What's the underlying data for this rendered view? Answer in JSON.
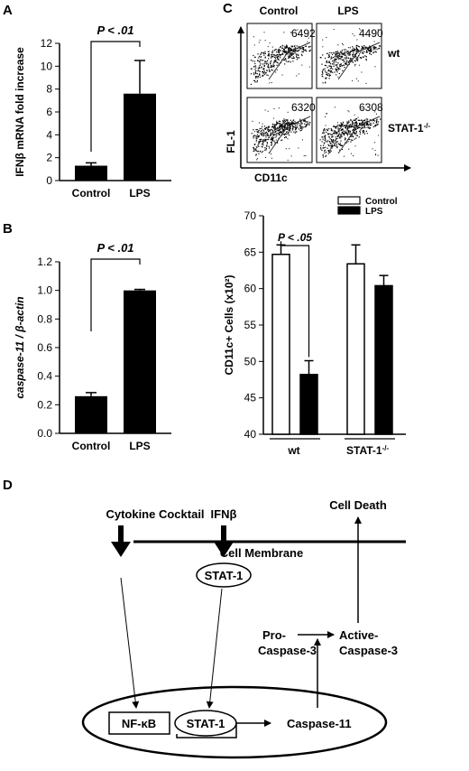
{
  "panels": {
    "A": {
      "letter": "A",
      "chart_data": {
        "type": "bar",
        "categories": [
          "Control",
          "LPS"
        ],
        "values": [
          1.3,
          7.6
        ],
        "errors": [
          0.25,
          2.9
        ],
        "ylabel": "IFNβ mRNA fold increase",
        "ylim": [
          0,
          12
        ],
        "yticks": [
          "0",
          "2",
          "4",
          "6",
          "8",
          "10",
          "12"
        ],
        "significance": "P < .01"
      }
    },
    "B": {
      "letter": "B",
      "chart_data": {
        "type": "bar",
        "categories": [
          "Control",
          "LPS"
        ],
        "values": [
          0.26,
          1.0
        ],
        "errors": [
          0.025,
          0.007
        ],
        "ylabel": "caspase-11 / β-actin",
        "ylim": [
          0,
          1.2
        ],
        "yticks": [
          "0.0",
          "0.2",
          "0.4",
          "0.6",
          "0.8",
          "1.0",
          "1.2"
        ],
        "significance": "P < .01"
      }
    },
    "C": {
      "letter": "C",
      "flow": {
        "col_labels": [
          "Control",
          "LPS"
        ],
        "row_labels": [
          "wt",
          "STAT-1-/-"
        ],
        "counts": [
          [
            "6492",
            "4490"
          ],
          [
            "6320",
            "6308"
          ]
        ],
        "y_axis": "FL-1",
        "x_axis": "CD11c"
      },
      "chart_data": {
        "type": "bar",
        "groups": [
          "wt",
          "STAT-1-/-"
        ],
        "series": [
          {
            "name": "Control",
            "values": [
              64.7,
              63.4
            ],
            "errors": [
              1.3,
              2.6
            ],
            "fill": "#ffffff"
          },
          {
            "name": "LPS",
            "values": [
              48.2,
              60.4
            ],
            "errors": [
              1.9,
              1.4
            ],
            "fill": "#000000"
          }
        ],
        "ylabel": "CD11c+ Cells (x10²)",
        "ylim": [
          40,
          70
        ],
        "yticks": [
          "40",
          "45",
          "50",
          "55",
          "60",
          "65",
          "70"
        ],
        "legend_position": "top-right",
        "significance": "P < .05"
      }
    },
    "D": {
      "letter": "D",
      "diagram": {
        "cytokine_cocktail": "Cytokine Cocktail",
        "ifnb": "IFNβ",
        "cell_death": "Cell Death",
        "cell_membrane": "Cell Membrane",
        "stat1_cytoplasm": "STAT-1",
        "pro_caspase_line1": "Pro-",
        "pro_caspase_line2": "Caspase-3",
        "active_caspase_line1": "Active-",
        "active_caspase_line2": "Caspase-3",
        "nfkb": "NF-κB",
        "stat1_nucleus": "STAT-1",
        "caspase11": "Caspase-11"
      }
    }
  }
}
